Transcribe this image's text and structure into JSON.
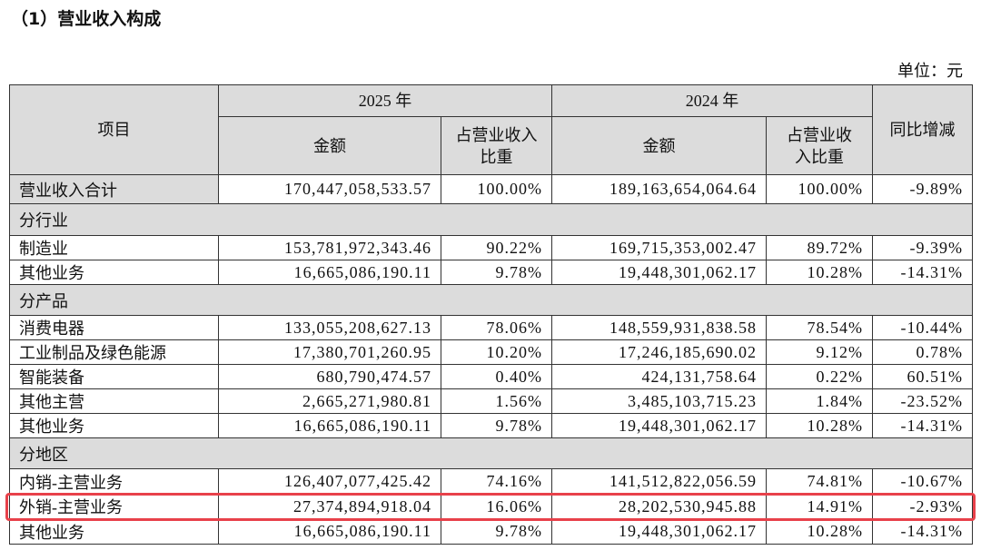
{
  "title": "（1）营业收入构成",
  "unit": "单位：元",
  "table": {
    "header": {
      "item": "项目",
      "year_a": "2025 年",
      "year_b": "2024 年",
      "yoy": "同比增减",
      "cols": [
        "金额",
        "占营业收入比重",
        "金额",
        "占营业收入比重"
      ]
    },
    "rows": [
      [
        "营业收入合计",
        "170,447,058,533.57",
        "100.00%",
        "189,163,654,064.64",
        "100.00%",
        "-9.89%"
      ],
      [
        "分行业"
      ],
      [
        "制造业",
        "153,781,972,343.46",
        "90.22%",
        "169,715,353,002.47",
        "89.72%",
        "-9.39%"
      ],
      [
        "其他业务",
        "16,665,086,190.11",
        "9.78%",
        "19,448,301,062.17",
        "10.28%",
        "-14.31%"
      ],
      [
        "分产品"
      ],
      [
        "消费电器",
        "133,055,208,627.13",
        "78.06%",
        "148,559,931,838.58",
        "78.54%",
        "-10.44%"
      ],
      [
        "工业制品及绿色能源",
        "17,380,701,260.95",
        "10.20%",
        "17,246,185,690.02",
        "9.12%",
        "0.78%"
      ],
      [
        "智能装备",
        "680,790,474.57",
        "0.40%",
        "424,131,758.64",
        "0.22%",
        "60.51%"
      ],
      [
        "其他主营",
        "2,665,271,980.81",
        "1.56%",
        "3,485,103,715.23",
        "1.84%",
        "-23.52%"
      ],
      [
        "其他业务",
        "16,665,086,190.11",
        "9.78%",
        "19,448,301,062.17",
        "10.28%",
        "-14.31%"
      ],
      [
        "分地区"
      ],
      [
        "内销-主营业务",
        "126,407,077,425.42",
        "74.16%",
        "141,512,822,056.59",
        "74.81%",
        "-10.67%"
      ],
      [
        "外销-主营业务",
        "27,374,894,918.04",
        "16.06%",
        "28,202,530,945.88",
        "14.91%",
        "-2.93%"
      ],
      [
        "其他业务",
        "16,665,086,190.11",
        "9.78%",
        "19,448,301,062.17",
        "10.28%",
        "-14.31%"
      ]
    ],
    "highlight_row": 12
  }
}
